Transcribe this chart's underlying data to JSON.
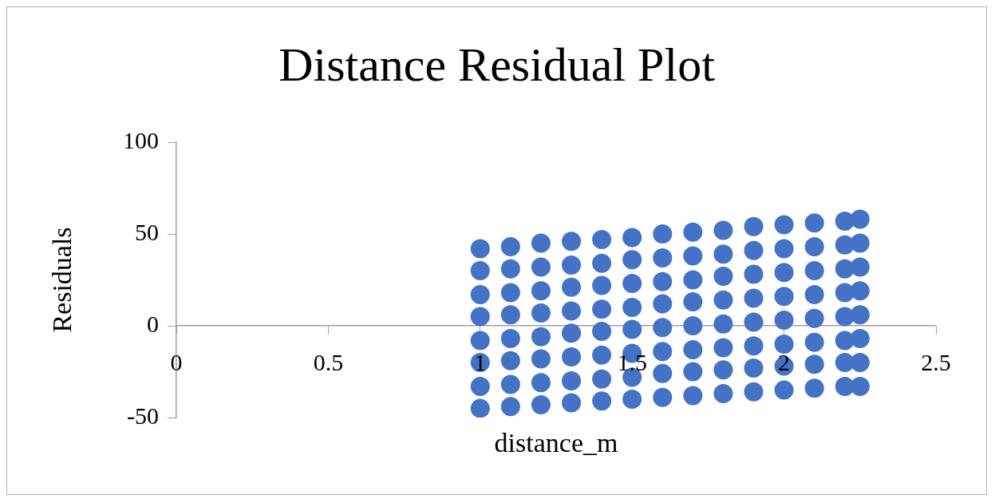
{
  "chart_data": {
    "type": "scatter",
    "title": "Distance Residual Plot",
    "xlabel": "distance_m",
    "ylabel": "Residuals",
    "xlim": [
      0,
      2.5
    ],
    "xticks": [
      0,
      0.5,
      1,
      1.5,
      2,
      2.5
    ],
    "ylim": [
      -50,
      100
    ],
    "yticks": [
      -50,
      0,
      50,
      100
    ],
    "grid": false,
    "legend": false,
    "marker": "circle",
    "series": [
      {
        "color": "#4472c4",
        "x": [
          1,
          1,
          1,
          1,
          1,
          1,
          1,
          1,
          1.1,
          1.1,
          1.1,
          1.1,
          1.1,
          1.1,
          1.1,
          1.1,
          1.2,
          1.2,
          1.2,
          1.2,
          1.2,
          1.2,
          1.2,
          1.2,
          1.3,
          1.3,
          1.3,
          1.3,
          1.3,
          1.3,
          1.3,
          1.3,
          1.4,
          1.4,
          1.4,
          1.4,
          1.4,
          1.4,
          1.4,
          1.4,
          1.5,
          1.5,
          1.5,
          1.5,
          1.5,
          1.5,
          1.5,
          1.5,
          1.6,
          1.6,
          1.6,
          1.6,
          1.6,
          1.6,
          1.6,
          1.6,
          1.7,
          1.7,
          1.7,
          1.7,
          1.7,
          1.7,
          1.7,
          1.7,
          1.8,
          1.8,
          1.8,
          1.8,
          1.8,
          1.8,
          1.8,
          1.8,
          1.9,
          1.9,
          1.9,
          1.9,
          1.9,
          1.9,
          1.9,
          1.9,
          2,
          2,
          2,
          2,
          2,
          2,
          2,
          2,
          2.1,
          2.1,
          2.1,
          2.1,
          2.1,
          2.1,
          2.1,
          2.1,
          2.2,
          2.2,
          2.2,
          2.2,
          2.2,
          2.2,
          2.2,
          2.2,
          2.25,
          2.25,
          2.25,
          2.25,
          2.25,
          2.25,
          2.25,
          2.25
        ],
        "values": [
          -45,
          -33,
          -20,
          -8,
          5,
          17,
          30,
          42,
          -44,
          -32,
          -19,
          -7,
          6,
          18,
          31,
          43,
          -43,
          -31,
          -18,
          -6,
          7,
          19,
          32,
          45,
          -42,
          -30,
          -17,
          -4,
          8,
          21,
          33,
          46,
          -41,
          -29,
          -16,
          -3,
          9,
          22,
          34,
          47,
          -40,
          -28,
          -15,
          -2,
          10,
          23,
          36,
          48,
          -39,
          -26,
          -14,
          -1,
          12,
          24,
          37,
          50,
          -38,
          -25,
          -13,
          0,
          13,
          25,
          38,
          51,
          -37,
          -24,
          -12,
          1,
          14,
          27,
          39,
          52,
          -36,
          -23,
          -11,
          2,
          15,
          28,
          41,
          54,
          -35,
          -22,
          -10,
          3,
          16,
          29,
          42,
          55,
          -34,
          -21,
          -9,
          4,
          17,
          30,
          43,
          56,
          -33,
          -20,
          -8,
          5,
          18,
          31,
          44,
          57,
          -33,
          -20,
          -7,
          6,
          19,
          32,
          45,
          58
        ]
      }
    ]
  }
}
